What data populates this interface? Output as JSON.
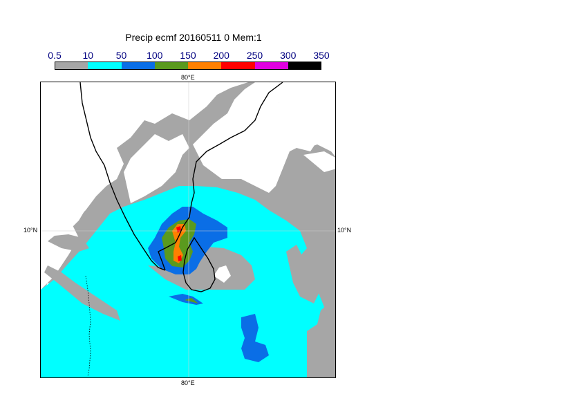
{
  "title": "Precip ecmf 20160511 0 Mem:1",
  "legend": {
    "ticks": [
      "0.5",
      "10",
      "50",
      "100",
      "150",
      "200",
      "250",
      "300",
      "350"
    ],
    "colors": [
      "#a6a6a6",
      "#00ffff",
      "#0a6ee6",
      "#5a9a1e",
      "#ff8000",
      "#ff0000",
      "#e000e0",
      "#000000"
    ]
  },
  "map": {
    "lon_label_top": "80°E",
    "lon_label_bottom": "80°E",
    "lat_label_left": "10°N",
    "lat_label_right": "10°N",
    "colors": {
      "land_coast": "#000000",
      "grid": "#d0d0d0"
    }
  }
}
